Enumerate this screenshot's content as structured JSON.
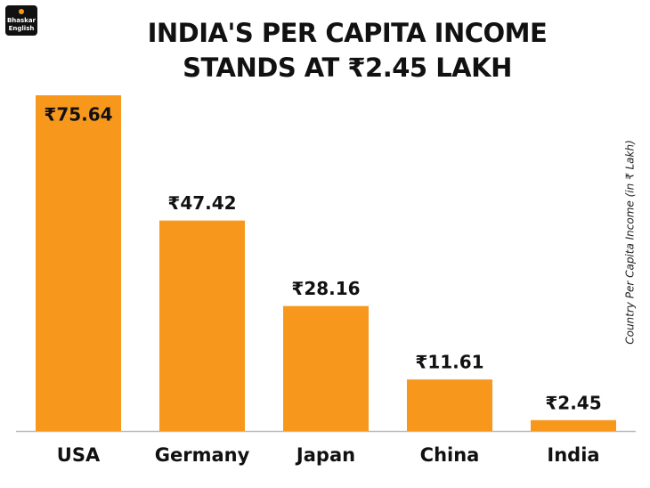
{
  "logo": {
    "lines": [
      "Bhaskar",
      "English"
    ]
  },
  "chart_data": {
    "type": "bar",
    "title": "INDIA'S PER CAPITA INCOME STANDS AT ₹2.45 LAKH",
    "y_label": "Country Per Capita Income (in ₹ Lakh)",
    "categories": [
      "USA",
      "Germany",
      "Japan",
      "China",
      "India"
    ],
    "values": [
      75.64,
      47.42,
      28.16,
      11.61,
      2.45
    ],
    "value_labels": [
      "₹75.64",
      "₹47.42",
      "₹28.16",
      "₹11.61",
      "₹2.45"
    ],
    "color": "#f7981d"
  }
}
